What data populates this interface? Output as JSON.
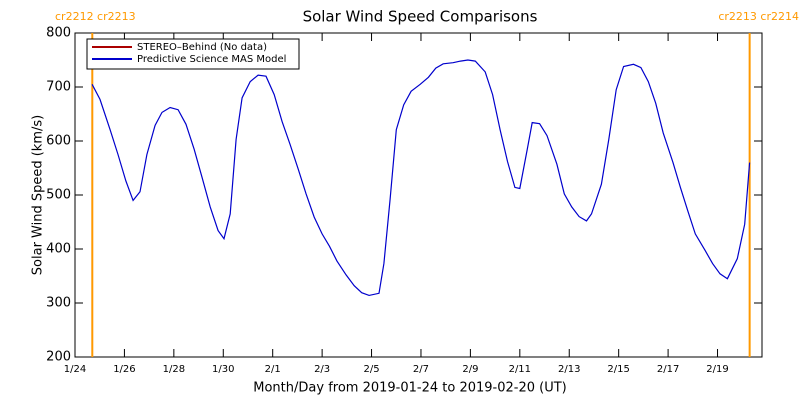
{
  "chart_data": {
    "type": "line",
    "title": "Solar Wind Speed Comparisons",
    "xlabel": "Month/Day from 2019-01-24 to 2019-02-20 (UT)",
    "ylabel": "Solar Wind Speed (km/s)",
    "xlim": [
      0,
      27.8
    ],
    "ylim": [
      200,
      800
    ],
    "yticks": [
      200,
      300,
      400,
      500,
      600,
      700,
      800
    ],
    "xticks": [
      {
        "value": 0,
        "label": "1/24"
      },
      {
        "value": 2,
        "label": "1/26"
      },
      {
        "value": 4,
        "label": "1/28"
      },
      {
        "value": 6,
        "label": "1/30"
      },
      {
        "value": 8,
        "label": "2/1"
      },
      {
        "value": 10,
        "label": "2/3"
      },
      {
        "value": 12,
        "label": "2/5"
      },
      {
        "value": 14,
        "label": "2/7"
      },
      {
        "value": 16,
        "label": "2/9"
      },
      {
        "value": 18,
        "label": "2/11"
      },
      {
        "value": 20,
        "label": "2/13"
      },
      {
        "value": 22,
        "label": "2/15"
      },
      {
        "value": 24,
        "label": "2/17"
      },
      {
        "value": 26,
        "label": "2/19"
      }
    ],
    "legend_position": "upper left",
    "series": [
      {
        "name": "STEREO–Behind (No data)",
        "color": "#aa0000",
        "x": [],
        "values": []
      },
      {
        "name": "Predictive Science MAS Model",
        "color": "#0000cc",
        "x": [
          0.69,
          1.01,
          1.42,
          1.74,
          2.06,
          2.35,
          2.63,
          2.91,
          3.24,
          3.52,
          3.85,
          4.17,
          4.49,
          4.82,
          5.14,
          5.47,
          5.79,
          6.03,
          6.28,
          6.52,
          6.76,
          7.09,
          7.41,
          7.73,
          8.06,
          8.38,
          8.7,
          9.03,
          9.35,
          9.68,
          10.0,
          10.3,
          10.6,
          10.97,
          11.3,
          11.6,
          11.9,
          12.3,
          12.5,
          12.75,
          13.0,
          13.3,
          13.6,
          13.97,
          14.3,
          14.6,
          14.9,
          15.3,
          15.6,
          15.9,
          16.2,
          16.6,
          16.9,
          17.2,
          17.5,
          17.8,
          18.0,
          18.3,
          18.5,
          18.8,
          19.1,
          19.5,
          19.8,
          20.1,
          20.4,
          20.7,
          20.9,
          21.3,
          21.6,
          21.9,
          22.2,
          22.6,
          22.9,
          23.2,
          23.5,
          23.8,
          24.2,
          24.5,
          24.8,
          25.1,
          25.5,
          25.8,
          26.1,
          26.4,
          26.8,
          27.1,
          27.3
        ],
        "values": [
          705,
          677,
          621,
          575,
          526,
          490,
          506,
          575,
          629,
          653,
          662,
          658,
          631,
          585,
          533,
          478,
          434,
          419,
          465,
          603,
          680,
          710,
          722,
          720,
          686,
          636,
          594,
          548,
          502,
          459,
          428,
          405,
          378,
          352,
          332,
          319,
          314,
          318,
          373,
          492,
          621,
          667,
          692,
          705,
          718,
          735,
          743,
          745,
          748,
          750,
          748,
          728,
          686,
          621,
          562,
          514,
          512,
          584,
          634,
          632,
          610,
          557,
          502,
          478,
          460,
          452,
          465,
          520,
          603,
          695,
          738,
          742,
          736,
          710,
          670,
          615,
          560,
          514,
          470,
          428,
          397,
          373,
          354,
          345,
          382,
          446,
          560
        ]
      }
    ],
    "annotations": [
      {
        "x": 0.7,
        "text": "cr2212 cr2213",
        "color": "#ff9900"
      },
      {
        "x": 27.3,
        "text": "cr2213 cr2214",
        "color": "#ff9900"
      }
    ]
  }
}
